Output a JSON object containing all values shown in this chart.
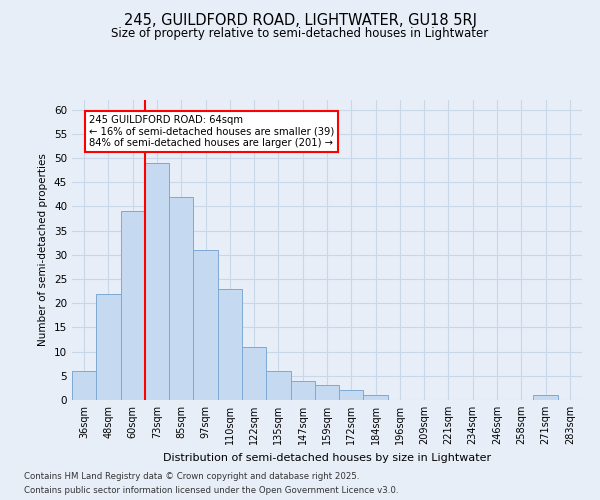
{
  "title": "245, GUILDFORD ROAD, LIGHTWATER, GU18 5RJ",
  "subtitle": "Size of property relative to semi-detached houses in Lightwater",
  "xlabel": "Distribution of semi-detached houses by size in Lightwater",
  "ylabel": "Number of semi-detached properties",
  "categories": [
    "36sqm",
    "48sqm",
    "60sqm",
    "73sqm",
    "85sqm",
    "97sqm",
    "110sqm",
    "122sqm",
    "135sqm",
    "147sqm",
    "159sqm",
    "172sqm",
    "184sqm",
    "196sqm",
    "209sqm",
    "221sqm",
    "234sqm",
    "246sqm",
    "258sqm",
    "271sqm",
    "283sqm"
  ],
  "values": [
    6,
    22,
    39,
    49,
    42,
    31,
    23,
    11,
    6,
    4,
    3,
    2,
    1,
    0,
    0,
    0,
    0,
    0,
    0,
    1,
    0
  ],
  "bar_color": "#c5d9f0",
  "bar_edge_color": "#7ca9d4",
  "grid_color": "#c8d8e8",
  "background_color": "#e8eef8",
  "property_label": "245 GUILDFORD ROAD: 64sqm",
  "pct_smaller": 16,
  "pct_larger": 84,
  "n_smaller": 39,
  "n_larger": 201,
  "red_line_bin": 2.5,
  "ylim": [
    0,
    62
  ],
  "yticks": [
    0,
    5,
    10,
    15,
    20,
    25,
    30,
    35,
    40,
    45,
    50,
    55,
    60
  ],
  "footnote1": "Contains HM Land Registry data © Crown copyright and database right 2025.",
  "footnote2": "Contains public sector information licensed under the Open Government Licence v3.0."
}
